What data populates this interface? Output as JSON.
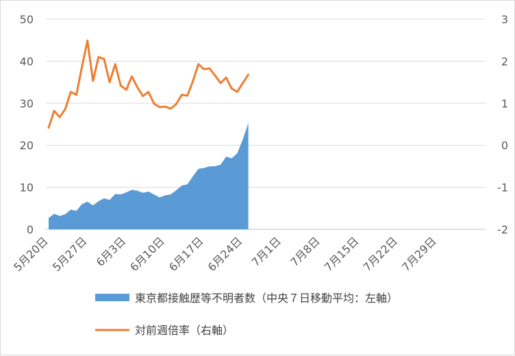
{
  "chart_data": {
    "type": "area+line",
    "left_axis": {
      "ylim": [
        0,
        50
      ],
      "ticks": [
        "0",
        "10",
        "20",
        "30",
        "40",
        "50"
      ]
    },
    "right_axis": {
      "ylim": [
        -2,
        3
      ],
      "ticks": [
        "-2",
        "-1",
        "0",
        "1",
        "2",
        "3"
      ]
    },
    "x_tick_labels": [
      "5月20日",
      "5月27日",
      "6月3日",
      "6月10日",
      "6月17日",
      "6月24日",
      "7月1日",
      "7月8日",
      "7月15日",
      "7月22日",
      "7月29日"
    ],
    "days_total": 71,
    "grid": true,
    "series": [
      {
        "name": "東京都接触歴等不明者数（中央７日移動平均：左軸）",
        "type": "area",
        "axis": "left",
        "color": "#5B9BD5",
        "values": [
          2.7,
          3.7,
          3.2,
          3.6,
          4.7,
          4.4,
          6.0,
          6.6,
          5.7,
          6.7,
          7.4,
          7.0,
          8.4,
          8.3,
          8.8,
          9.4,
          9.2,
          8.7,
          9.0,
          8.3,
          7.6,
          8.1,
          8.3,
          9.3,
          10.4,
          10.7,
          12.6,
          14.4,
          14.6,
          15.0,
          15.0,
          15.4,
          17.3,
          16.9,
          18.1,
          21.4,
          25.3
        ]
      },
      {
        "name": "対前週倍率（右軸）",
        "type": "line",
        "axis": "right",
        "color": "#ED7D31",
        "values": [
          0.42,
          0.82,
          0.67,
          0.86,
          1.27,
          1.2,
          1.86,
          2.49,
          1.53,
          2.1,
          2.05,
          1.5,
          1.93,
          1.42,
          1.32,
          1.64,
          1.38,
          1.17,
          1.27,
          0.99,
          0.91,
          0.92,
          0.87,
          0.98,
          1.2,
          1.18,
          1.52,
          1.93,
          1.81,
          1.83,
          1.66,
          1.48,
          1.61,
          1.35,
          1.27,
          1.48,
          1.68
        ]
      }
    ]
  }
}
